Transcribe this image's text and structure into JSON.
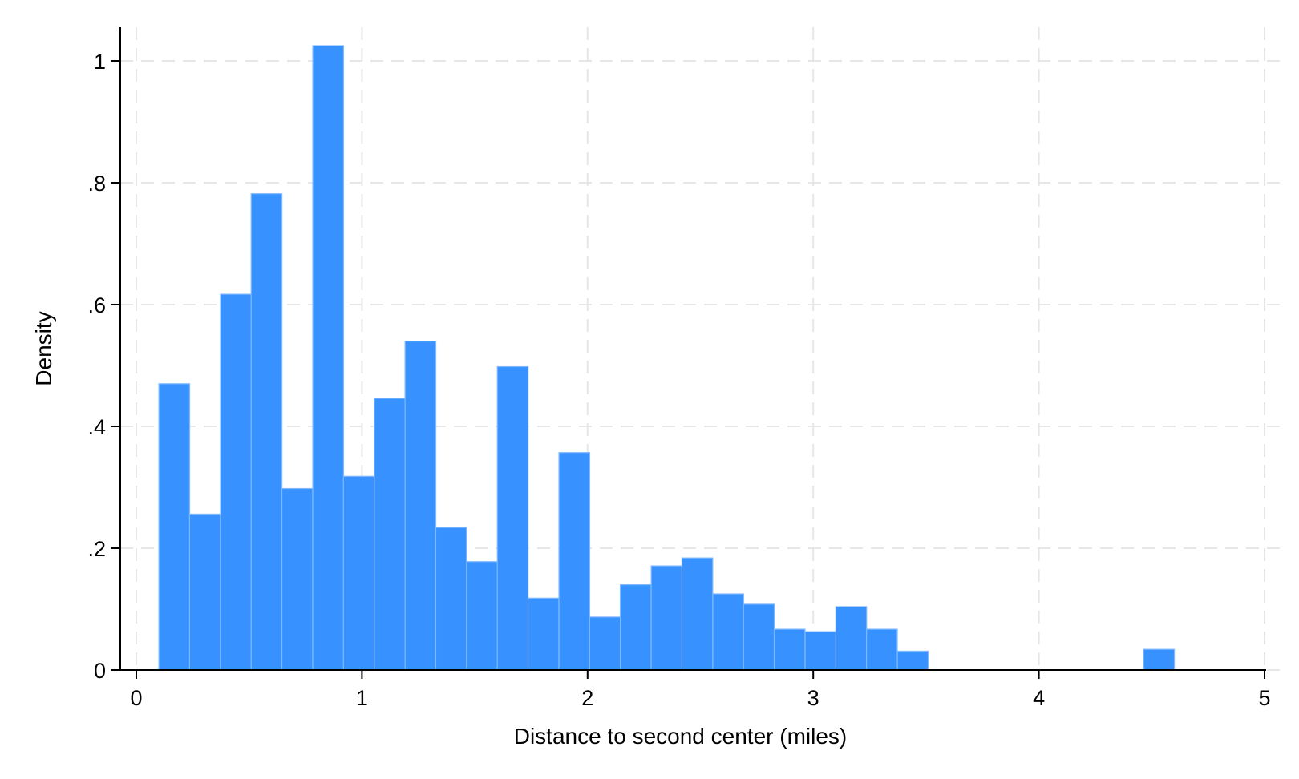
{
  "chart_data": {
    "type": "bar",
    "subtype": "histogram",
    "title": "",
    "xlabel": "Distance to second center (miles)",
    "ylabel": "Density",
    "xlim": [
      0,
      5
    ],
    "ylim": [
      0,
      1.02
    ],
    "x_ticks": [
      {
        "value": 0,
        "label": "0"
      },
      {
        "value": 1,
        "label": "1"
      },
      {
        "value": 2,
        "label": "2"
      },
      {
        "value": 3,
        "label": "3"
      },
      {
        "value": 4,
        "label": "4"
      },
      {
        "value": 5,
        "label": "5"
      }
    ],
    "y_ticks": [
      {
        "value": 0,
        "label": "0"
      },
      {
        "value": 0.2,
        "label": ".2"
      },
      {
        "value": 0.4,
        "label": ".4"
      },
      {
        "value": 0.6,
        "label": ".6"
      },
      {
        "value": 0.8,
        "label": ".8"
      },
      {
        "value": 1.0,
        "label": "1"
      }
    ],
    "grid": true,
    "bar_color": "#3792ff",
    "bar_edge_color": "#7fb8ff",
    "grid_color": "#e6e6e6",
    "bin_width": 0.1364,
    "bins": [
      {
        "start": 0.1,
        "value": 0.47
      },
      {
        "start": 0.236,
        "value": 0.256
      },
      {
        "start": 0.373,
        "value": 0.617
      },
      {
        "start": 0.509,
        "value": 0.782
      },
      {
        "start": 0.645,
        "value": 0.298
      },
      {
        "start": 0.782,
        "value": 1.025
      },
      {
        "start": 0.918,
        "value": 0.318
      },
      {
        "start": 1.055,
        "value": 0.446
      },
      {
        "start": 1.191,
        "value": 0.54
      },
      {
        "start": 1.327,
        "value": 0.234
      },
      {
        "start": 1.464,
        "value": 0.178
      },
      {
        "start": 1.6,
        "value": 0.498
      },
      {
        "start": 1.736,
        "value": 0.118
      },
      {
        "start": 1.873,
        "value": 0.357
      },
      {
        "start": 2.009,
        "value": 0.087
      },
      {
        "start": 2.145,
        "value": 0.14
      },
      {
        "start": 2.282,
        "value": 0.171
      },
      {
        "start": 2.418,
        "value": 0.184
      },
      {
        "start": 2.555,
        "value": 0.125
      },
      {
        "start": 2.691,
        "value": 0.108
      },
      {
        "start": 2.827,
        "value": 0.067
      },
      {
        "start": 2.964,
        "value": 0.063
      },
      {
        "start": 3.1,
        "value": 0.104
      },
      {
        "start": 3.236,
        "value": 0.067
      },
      {
        "start": 3.373,
        "value": 0.031
      },
      {
        "start": 4.464,
        "value": 0.034
      }
    ]
  }
}
